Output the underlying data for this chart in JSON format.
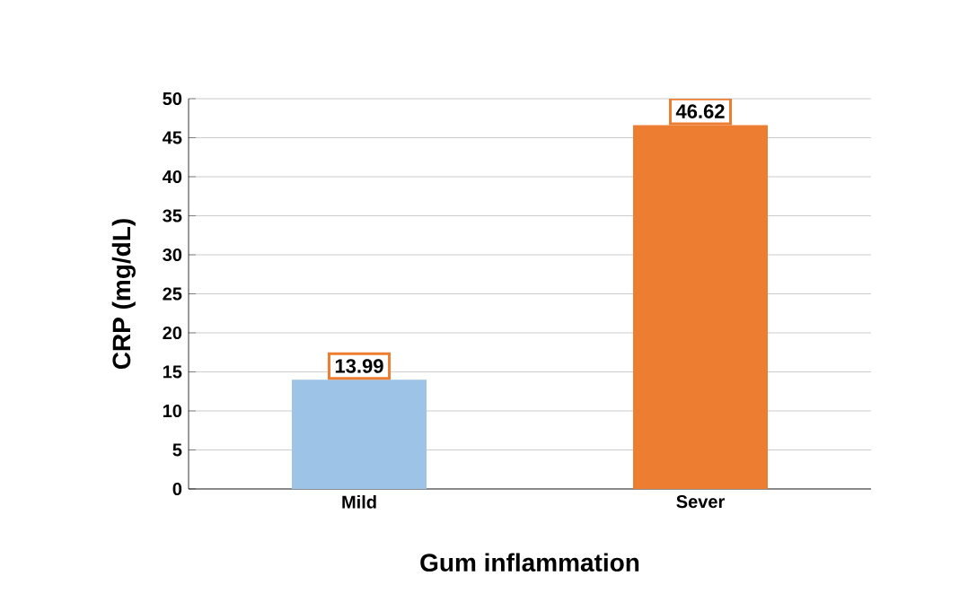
{
  "chart_data": {
    "type": "bar",
    "xlabel": "Gum inflammation",
    "ylabel": "CRP (mg/dL)",
    "categories": [
      "Mild",
      "Sever"
    ],
    "values": [
      13.99,
      46.62
    ],
    "colors": [
      "#9dc3e6",
      "#ed7d31"
    ],
    "ylim": [
      0,
      50
    ],
    "yticks": [
      0,
      5,
      10,
      15,
      20,
      25,
      30,
      35,
      40,
      45,
      50
    ],
    "grid": "y",
    "data_labels": true
  }
}
